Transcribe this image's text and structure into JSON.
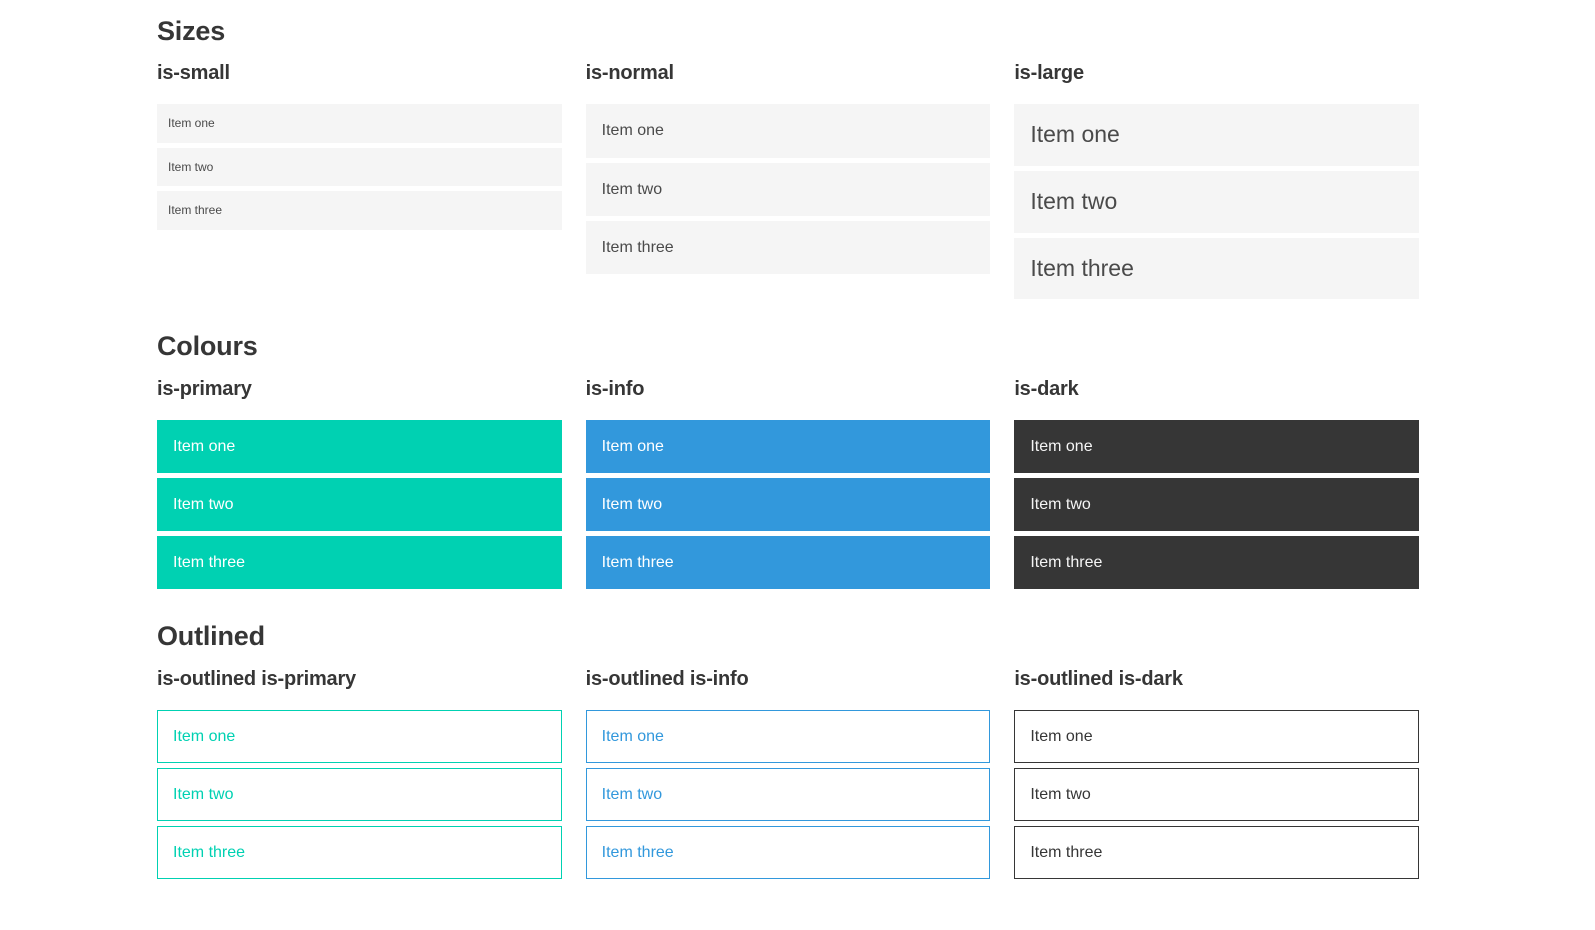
{
  "colors": {
    "primary": "#00d1b2",
    "info": "#3298dc",
    "dark": "#363636",
    "item_background": "#f5f5f5",
    "item_text": "#4a4a4a",
    "heading_text": "#363636",
    "page_background": "#ffffff"
  },
  "sections": [
    {
      "title": "Sizes",
      "groups": [
        {
          "label": "is-small",
          "items": [
            "Item one",
            "Item two",
            "Item three"
          ]
        },
        {
          "label": "is-normal",
          "items": [
            "Item one",
            "Item two",
            "Item three"
          ]
        },
        {
          "label": "is-large",
          "items": [
            "Item one",
            "Item two",
            "Item three"
          ]
        }
      ]
    },
    {
      "title": "Colours",
      "groups": [
        {
          "label": "is-primary",
          "items": [
            "Item one",
            "Item two",
            "Item three"
          ]
        },
        {
          "label": "is-info",
          "items": [
            "Item one",
            "Item two",
            "Item three"
          ]
        },
        {
          "label": "is-dark",
          "items": [
            "Item one",
            "Item two",
            "Item three"
          ]
        }
      ]
    },
    {
      "title": "Outlined",
      "groups": [
        {
          "label": "is-outlined is-primary",
          "items": [
            "Item one",
            "Item two",
            "Item three"
          ]
        },
        {
          "label": "is-outlined is-info",
          "items": [
            "Item one",
            "Item two",
            "Item three"
          ]
        },
        {
          "label": "is-outlined is-dark",
          "items": [
            "Item one",
            "Item two",
            "Item three"
          ]
        }
      ]
    }
  ]
}
